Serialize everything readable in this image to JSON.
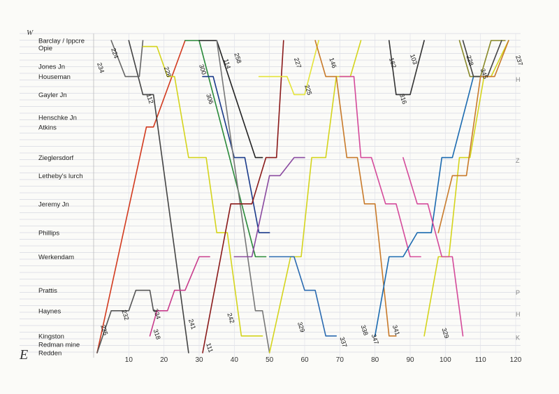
{
  "chart_data": {
    "type": "line",
    "direction_top": "W",
    "direction_bottom": "E",
    "xticks": [
      "10",
      "20",
      "30",
      "40",
      "50",
      "60",
      "70",
      "80",
      "90",
      "100",
      "110",
      "120"
    ],
    "xlim": [
      0,
      120
    ],
    "stations": [
      {
        "name": "Barclay / Ippcre",
        "pos": 0
      },
      {
        "name": "Opie",
        "pos": 1.2
      },
      {
        "name": "Jones Jn",
        "pos": 4.3
      },
      {
        "name": "Houseman",
        "pos": 6.0
      },
      {
        "name": "Gayler Jn",
        "pos": 9.0
      },
      {
        "name": "Henschke Jn",
        "pos": 12.8
      },
      {
        "name": "Atkins",
        "pos": 14.4
      },
      {
        "name": "Zieglersdorf",
        "pos": 19.5
      },
      {
        "name": "Letheby's lurch",
        "pos": 22.5
      },
      {
        "name": "Jeremy Jn",
        "pos": 27.2
      },
      {
        "name": "Phillips",
        "pos": 32.0
      },
      {
        "name": "Werkendam",
        "pos": 36.0
      },
      {
        "name": "Prattis",
        "pos": 41.6
      },
      {
        "name": "Haynes",
        "pos": 45.0
      },
      {
        "name": "Kingston",
        "pos": 49.2
      },
      {
        "name": "Redman mine",
        "pos": 50.6
      },
      {
        "name": "Redden",
        "pos": 52.0
      }
    ],
    "ylim": [
      0,
      52
    ],
    "side_marks": [
      {
        "text": "H",
        "pos": 6.5
      },
      {
        "text": "Z",
        "pos": 20.0
      },
      {
        "text": "P",
        "pos": 42.0
      },
      {
        "text": "H",
        "pos": 45.6
      },
      {
        "text": "K",
        "pos": 49.5
      }
    ],
    "series": [
      {
        "name": "",
        "color": "#d23a1e",
        "points": [
          [
            1,
            52
          ],
          [
            15,
            14.4
          ],
          [
            17,
            14.4
          ],
          [
            26,
            0
          ]
        ]
      },
      {
        "name": "",
        "color": "#555555",
        "points": [
          [
            1,
            52
          ],
          [
            5,
            45
          ],
          [
            10,
            45
          ],
          [
            12,
            41.6
          ],
          [
            16,
            41.6
          ],
          [
            17,
            45
          ],
          [
            19,
            45
          ]
        ]
      },
      {
        "name": "",
        "color": "#444444",
        "points": [
          [
            10,
            0
          ],
          [
            14,
            9
          ],
          [
            17,
            9
          ],
          [
            27,
            52
          ]
        ]
      },
      {
        "name": "",
        "color": "#666666",
        "points": [
          [
            5,
            0
          ],
          [
            9,
            6
          ],
          [
            13,
            6
          ],
          [
            14,
            0
          ]
        ]
      },
      {
        "name": "",
        "color": "#d4d41c",
        "points": [
          [
            14,
            1
          ],
          [
            18,
            1
          ],
          [
            21,
            6
          ],
          [
            23,
            6
          ],
          [
            27,
            19.5
          ],
          [
            32,
            19.5
          ],
          [
            35,
            32
          ],
          [
            38,
            32
          ],
          [
            42,
            49.2
          ],
          [
            48,
            49.2
          ]
        ]
      },
      {
        "name": "",
        "color": "#c83c8c",
        "points": [
          [
            16,
            49.2
          ],
          [
            18,
            45
          ],
          [
            21,
            45
          ],
          [
            23,
            41.6
          ],
          [
            26,
            41.6
          ],
          [
            30,
            36
          ],
          [
            33,
            36
          ]
        ]
      },
      {
        "name": "",
        "color": "#2a8a3a",
        "points": [
          [
            26,
            0
          ],
          [
            30,
            0
          ],
          [
            46,
            36
          ],
          [
            49,
            36
          ]
        ]
      },
      {
        "name": "",
        "color": "#222222",
        "points": [
          [
            30,
            0
          ],
          [
            35,
            0
          ],
          [
            46,
            19.5
          ],
          [
            48,
            19.5
          ]
        ]
      },
      {
        "name": "",
        "color": "#1a3a8a",
        "points": [
          [
            31,
            6
          ],
          [
            34,
            6
          ],
          [
            40,
            19.5
          ],
          [
            43,
            19.5
          ],
          [
            47,
            32
          ],
          [
            50,
            32
          ]
        ]
      },
      {
        "name": "",
        "color": "#777777",
        "points": [
          [
            35,
            0
          ],
          [
            46,
            45
          ],
          [
            48,
            45
          ],
          [
            50,
            52
          ]
        ]
      },
      {
        "name": "",
        "color": "#8a1a1a",
        "points": [
          [
            31,
            52
          ],
          [
            39,
            27.2
          ],
          [
            45,
            27.2
          ],
          [
            49,
            19.5
          ],
          [
            52,
            19.5
          ],
          [
            54,
            0
          ]
        ]
      },
      {
        "name": "",
        "color": "#e4e43a",
        "points": [
          [
            47,
            6
          ],
          [
            55,
            6
          ],
          [
            57,
            9
          ],
          [
            60,
            9
          ],
          [
            64,
            0
          ]
        ]
      },
      {
        "name": "",
        "color": "#d4d41c",
        "points": [
          [
            50,
            52
          ],
          [
            56,
            36
          ],
          [
            59,
            36
          ],
          [
            62,
            19.5
          ],
          [
            66,
            19.5
          ],
          [
            69,
            6
          ],
          [
            73,
            6
          ],
          [
            76,
            0
          ]
        ]
      },
      {
        "name": "",
        "color": "#2a6ab0",
        "points": [
          [
            50,
            36
          ],
          [
            57,
            36
          ],
          [
            60,
            41.6
          ],
          [
            63,
            41.6
          ],
          [
            66,
            49.2
          ],
          [
            69,
            49.2
          ]
        ]
      },
      {
        "name": "",
        "color": "#8a4aa0",
        "points": [
          [
            40,
            36
          ],
          [
            45,
            36
          ],
          [
            50,
            22.5
          ],
          [
            53,
            22.5
          ],
          [
            57,
            19.5
          ],
          [
            60,
            19.5
          ]
        ]
      },
      {
        "name": "",
        "color": "#c87a2a",
        "points": [
          [
            63,
            0
          ],
          [
            66,
            6
          ],
          [
            69,
            6
          ],
          [
            72,
            19.5
          ],
          [
            75,
            19.5
          ],
          [
            77,
            27.2
          ],
          [
            80,
            27.2
          ],
          [
            84,
            49.2
          ],
          [
            86,
            49.2
          ]
        ]
      },
      {
        "name": "",
        "color": "#d44a9a",
        "points": [
          [
            70,
            6
          ],
          [
            74,
            6
          ],
          [
            76,
            19.5
          ],
          [
            79,
            19.5
          ],
          [
            83,
            27.2
          ],
          [
            86,
            27.2
          ],
          [
            90,
            36
          ],
          [
            93,
            36
          ]
        ]
      },
      {
        "name": "",
        "color": "#333333",
        "points": [
          [
            84,
            0
          ],
          [
            86,
            9
          ],
          [
            90,
            9
          ],
          [
            94,
            0
          ]
        ]
      },
      {
        "name": "",
        "color": "#1a6ab0",
        "points": [
          [
            80,
            49.2
          ],
          [
            84,
            36
          ],
          [
            88,
            36
          ],
          [
            92,
            32
          ],
          [
            96,
            32
          ],
          [
            99,
            19.5
          ],
          [
            102,
            19.5
          ],
          [
            108,
            6
          ],
          [
            110,
            6
          ]
        ]
      },
      {
        "name": "",
        "color": "#d4d41c",
        "points": [
          [
            94,
            49.2
          ],
          [
            98,
            36
          ],
          [
            101,
            36
          ],
          [
            104,
            19.5
          ],
          [
            107,
            19.5
          ],
          [
            111,
            6
          ],
          [
            113,
            6
          ],
          [
            118,
            0
          ]
        ]
      },
      {
        "name": "",
        "color": "#d44a9a",
        "points": [
          [
            88,
            19.5
          ],
          [
            92,
            27.2
          ],
          [
            95,
            27.2
          ],
          [
            99,
            36
          ],
          [
            102,
            36
          ],
          [
            105,
            49.2
          ]
        ]
      },
      {
        "name": "",
        "color": "#8a8a2a",
        "points": [
          [
            104,
            0
          ],
          [
            107,
            6
          ],
          [
            110,
            6
          ],
          [
            113,
            0
          ],
          [
            117,
            0
          ]
        ]
      },
      {
        "name": "",
        "color": "#444444",
        "points": [
          [
            105,
            0
          ],
          [
            108,
            6
          ],
          [
            112,
            6
          ],
          [
            116,
            0
          ]
        ]
      },
      {
        "name": "",
        "color": "#c87a2a",
        "points": [
          [
            98,
            32
          ],
          [
            102,
            22.5
          ],
          [
            106,
            22.5
          ],
          [
            110,
            6
          ],
          [
            114,
            6
          ],
          [
            118,
            0
          ]
        ]
      }
    ],
    "train_numbers": [
      {
        "text": "224",
        "x": 5,
        "pos": 1.4
      },
      {
        "text": "234",
        "x": 1,
        "pos": 3.8
      },
      {
        "text": "112",
        "x": 15,
        "pos": 9.0
      },
      {
        "text": "228",
        "x": 20,
        "pos": 4.5
      },
      {
        "text": "300",
        "x": 30,
        "pos": 4.1
      },
      {
        "text": "306",
        "x": 32,
        "pos": 9.0
      },
      {
        "text": "114",
        "x": 37,
        "pos": 3.2
      },
      {
        "text": "258",
        "x": 40,
        "pos": 2.2
      },
      {
        "text": "227",
        "x": 57,
        "pos": 3.0
      },
      {
        "text": "225",
        "x": 60,
        "pos": 7.5
      },
      {
        "text": "146",
        "x": 67,
        "pos": 3.0
      },
      {
        "text": "162",
        "x": 84,
        "pos": 3.0
      },
      {
        "text": "103",
        "x": 90,
        "pos": 2.4
      },
      {
        "text": "316",
        "x": 87,
        "pos": 9.0
      },
      {
        "text": "228",
        "x": 106,
        "pos": 2.6
      },
      {
        "text": "345",
        "x": 110,
        "pos": 4.8
      },
      {
        "text": "237",
        "x": 120,
        "pos": 2.6
      },
      {
        "text": "225",
        "x": 2,
        "pos": 47.5
      },
      {
        "text": "232",
        "x": 8,
        "pos": 45.0
      },
      {
        "text": "334",
        "x": 17,
        "pos": 44.8
      },
      {
        "text": "318",
        "x": 17,
        "pos": 48.2
      },
      {
        "text": "241",
        "x": 27,
        "pos": 46.5
      },
      {
        "text": "242",
        "x": 38,
        "pos": 45.5
      },
      {
        "text": "111",
        "x": 32,
        "pos": 50.5
      },
      {
        "text": "329",
        "x": 58,
        "pos": 47.0
      },
      {
        "text": "337",
        "x": 70,
        "pos": 49.5
      },
      {
        "text": "338",
        "x": 76,
        "pos": 47.5
      },
      {
        "text": "347",
        "x": 79,
        "pos": 49.0
      },
      {
        "text": "341",
        "x": 85,
        "pos": 47.5
      },
      {
        "text": "329",
        "x": 99,
        "pos": 48.0
      }
    ]
  }
}
